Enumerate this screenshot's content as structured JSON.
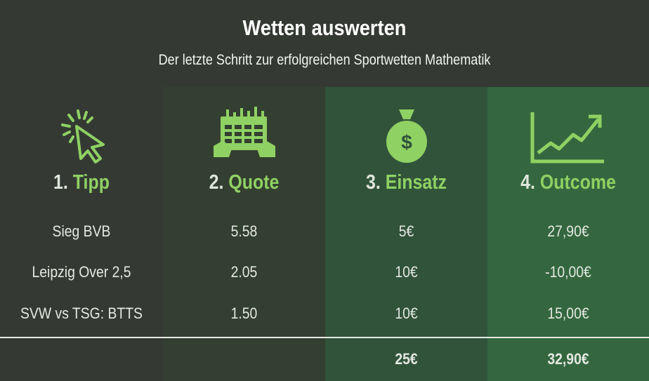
{
  "header": {
    "title": "Wetten auswerten",
    "subtitle": "Der letzte Schritt zur erfolgreichen Sportwetten Mathematik"
  },
  "columns": [
    {
      "number": "1.",
      "label": "Tipp",
      "icon": "cursor-click-icon"
    },
    {
      "number": "2.",
      "label": "Quote",
      "icon": "betting-slip-icon"
    },
    {
      "number": "3.",
      "label": "Einsatz",
      "icon": "money-bag-icon"
    },
    {
      "number": "4.",
      "label": "Outcome",
      "icon": "rising-chart-icon"
    }
  ],
  "rows": [
    {
      "tipp": "Sieg BVB",
      "quote": "5.58",
      "einsatz": "5€",
      "outcome": "27,90€"
    },
    {
      "tipp": "Leipzig Over 2,5",
      "quote": "2.05",
      "einsatz": "10€",
      "outcome": "-10,00€"
    },
    {
      "tipp": "SVW vs TSG: BTTS",
      "quote": "1.50",
      "einsatz": "10€",
      "outcome": "15,00€"
    }
  ],
  "totals": {
    "einsatz": "25€",
    "outcome": "32,90€"
  },
  "colors": {
    "background": "#343a33",
    "accent_green": "#8fd163",
    "col2": "#333f30",
    "col3": "#31533a",
    "col4": "#34673f"
  }
}
